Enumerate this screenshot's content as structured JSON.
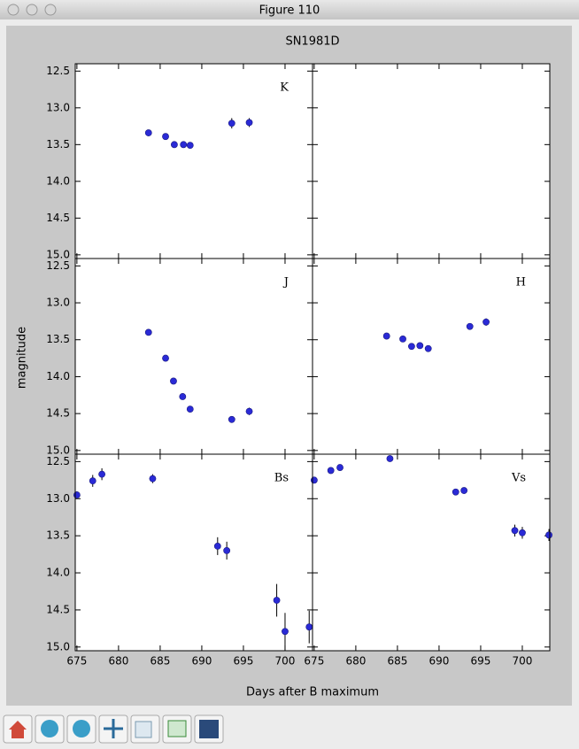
{
  "window": {
    "title": "Figure 110"
  },
  "figure": {
    "title": "SN1981D",
    "xlabel": "Days after B maximum",
    "ylabel": "magnitude"
  },
  "chart_data": [
    {
      "type": "scatter",
      "label": "K",
      "color": "#2a2ad6",
      "x": [
        683.6,
        685.65,
        686.7,
        687.8,
        688.6,
        693.6,
        695.7
      ],
      "values": [
        13.34,
        13.39,
        13.5,
        13.5,
        13.51,
        13.21,
        13.2
      ],
      "errors": [
        0.03,
        0.03,
        0.03,
        0.03,
        0.03,
        0.07,
        0.06
      ],
      "xlim": [
        674.8,
        703.3
      ],
      "ylim": [
        15.05,
        12.4
      ],
      "xticks": [
        675,
        680,
        685,
        690,
        695,
        700
      ],
      "yticks": [
        12.5,
        {
          "value": 13,
          "label": "13.0"
        },
        13.5,
        {
          "value": 14,
          "label": "14.0"
        },
        14.5,
        {
          "value": 15,
          "label": "15.0"
        }
      ]
    },
    {
      "type": "scatter",
      "color": "#2a2ad6",
      "x": [],
      "values": [],
      "errors": [],
      "xlim": [
        674.8,
        703.3
      ],
      "ylim": [
        15.05,
        12.4
      ],
      "xticks": [
        675,
        680,
        685,
        690,
        695,
        700
      ],
      "yticks": [
        12.5,
        13,
        13.5,
        14,
        14.5,
        15
      ]
    },
    {
      "type": "scatter",
      "label": "J",
      "color": "#2a2ad6",
      "x": [
        683.6,
        685.65,
        686.6,
        687.7,
        688.6,
        693.6,
        695.7
      ],
      "values": [
        13.4,
        13.75,
        14.06,
        14.27,
        14.44,
        14.58,
        14.47
      ],
      "errors": [
        0.03,
        0.03,
        0.03,
        0.03,
        0.03,
        0.03,
        0.05
      ],
      "xlim": [
        674.8,
        703.3
      ],
      "ylim": [
        15.05,
        12.4
      ],
      "xticks": [
        675,
        680,
        685,
        690,
        695,
        700
      ],
      "yticks": [
        12.5,
        {
          "value": 13,
          "label": "13.0"
        },
        13.5,
        {
          "value": 14,
          "label": "14.0"
        },
        14.5,
        {
          "value": 15,
          "label": "15.0"
        }
      ]
    },
    {
      "type": "scatter",
      "label": "H",
      "color": "#2a2ad6",
      "x": [
        683.7,
        685.65,
        686.7,
        687.7,
        688.7,
        693.7,
        695.65
      ],
      "values": [
        13.45,
        13.49,
        13.59,
        13.58,
        13.62,
        13.32,
        13.26
      ],
      "errors": [
        0.03,
        0.03,
        0.03,
        0.03,
        0.03,
        0.03,
        0.05
      ],
      "xlim": [
        674.8,
        703.3
      ],
      "ylim": [
        15.05,
        12.4
      ],
      "xticks": [
        675,
        680,
        685,
        690,
        695,
        700
      ],
      "yticks": [
        12.5,
        13,
        13.5,
        14,
        14.5,
        15
      ]
    },
    {
      "type": "scatter",
      "label": "Bs",
      "color": "#2a2ad6",
      "x": [
        675.0,
        676.9,
        678.0,
        684.1,
        691.9,
        693.0,
        699.0,
        700.0,
        702.9
      ],
      "values": [
        12.95,
        12.76,
        12.67,
        12.73,
        13.64,
        13.7,
        14.37,
        14.79,
        14.73
      ],
      "errors": [
        0.05,
        0.08,
        0.08,
        0.06,
        0.12,
        0.12,
        0.22,
        0.25,
        0.22
      ],
      "xlim": [
        674.8,
        703.3
      ],
      "ylim": [
        15.05,
        12.4
      ],
      "xticks": [
        675,
        680,
        685,
        690,
        695,
        700
      ],
      "yticks": [
        12.5,
        {
          "value": 13,
          "label": "13.0"
        },
        13.5,
        {
          "value": 14,
          "label": "14.0"
        },
        14.5,
        {
          "value": 15,
          "label": "15.0"
        }
      ]
    },
    {
      "type": "scatter",
      "label": "Vs",
      "color": "#2a2ad6",
      "x": [
        675.0,
        677.0,
        678.1,
        684.1,
        692.0,
        693.0,
        699.1,
        700.0,
        703.2
      ],
      "values": [
        12.75,
        12.62,
        12.58,
        12.46,
        12.91,
        12.89,
        13.43,
        13.46,
        13.49
      ],
      "errors": [
        0.03,
        0.03,
        0.03,
        0.03,
        0.04,
        0.04,
        0.08,
        0.08,
        0.08
      ],
      "xlim": [
        674.8,
        703.3
      ],
      "ylim": [
        15.05,
        12.4
      ],
      "xticks": [
        675,
        680,
        685,
        690,
        695,
        700
      ],
      "yticks": [
        12.5,
        13,
        13.5,
        14,
        14.5,
        15
      ]
    }
  ]
}
